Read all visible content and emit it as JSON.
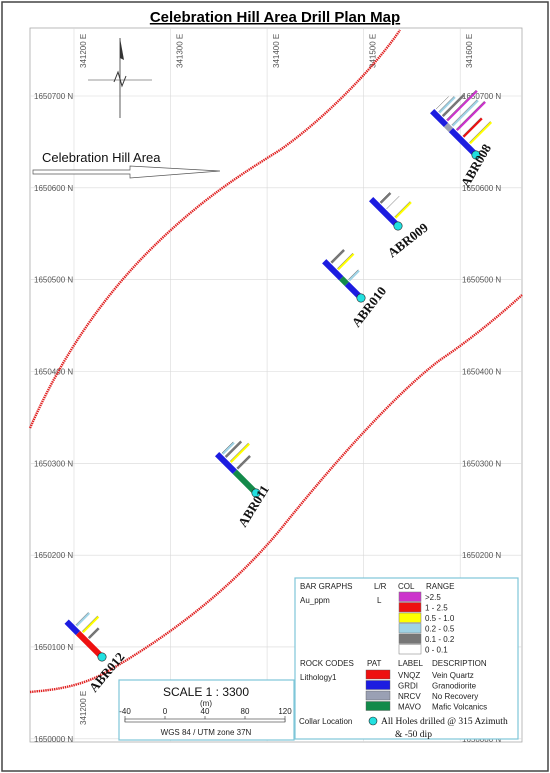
{
  "title": "Celebration Hill Area Drill Plan Map",
  "area_label": "Celebration Hill Area",
  "eastings": [
    {
      "label": "341200 E",
      "value": 341200
    },
    {
      "label": "341300 E",
      "value": 341300
    },
    {
      "label": "341400 E",
      "value": 341400
    },
    {
      "label": "341500 E",
      "value": 341500
    },
    {
      "label": "341600 E",
      "value": 341600
    }
  ],
  "northings": [
    {
      "label": "1650700 N",
      "value": 1650700
    },
    {
      "label": "1650600 N",
      "value": 1650600
    },
    {
      "label": "1650500 N",
      "value": 1650500
    },
    {
      "label": "1650400 N",
      "value": 1650400
    },
    {
      "label": "1650300 N",
      "value": 1650300
    },
    {
      "label": "1650200 N",
      "value": 1650200
    },
    {
      "label": "1650100 N",
      "value": 1650100
    },
    {
      "label": "1650000 N",
      "value": 1650000
    }
  ],
  "holes": [
    "ABR008",
    "ABR009",
    "ABR010",
    "ABR011",
    "ABR012"
  ],
  "legend": {
    "bar_graphs_header": "BAR GRAPHS",
    "lr_header": "L/R",
    "col_header": "COL",
    "range_header": "RANGE",
    "variable": "Au_ppm",
    "lr_value": "L",
    "ranges": [
      {
        "label": ">2.5",
        "color": "#cc33cc"
      },
      {
        "label": "1 - 2.5",
        "color": "#ee1111"
      },
      {
        "label": "0.5 - 1.0",
        "color": "#ffff00"
      },
      {
        "label": "0.2 - 0.5",
        "color": "#9fd3e6"
      },
      {
        "label": "0.1 - 0.2",
        "color": "#777777"
      },
      {
        "label": "0 - 0.1",
        "color": "#ffffff"
      }
    ],
    "rock_codes_header": "ROCK CODES",
    "pat_header": "PAT",
    "label_header": "LABEL",
    "description_header": "DESCRIPTION",
    "lithology_label": "Lithology1",
    "rocks": [
      {
        "code": "VNQZ",
        "description": "Vein Quartz",
        "color": "#ee1111"
      },
      {
        "code": "GRDI",
        "description": "Granodiorite",
        "color": "#1c1ce0"
      },
      {
        "code": "NRCV",
        "description": "No Recovery",
        "color": "#9aa0b4"
      },
      {
        "code": "MAVO",
        "description": "Mafic Volcanics",
        "color": "#138a4a"
      }
    ],
    "collar_label": "Collar Location",
    "collar_text_1": "All Holes drilled @ 315 Azimuth",
    "collar_text_2": "& -50 dip"
  },
  "scale": {
    "title": "SCALE  1 : 3300",
    "unit": "(m)",
    "ticks": [
      "-40",
      "0",
      "40",
      "80",
      "120"
    ],
    "projection": "WGS 84 / UTM zone 37N"
  }
}
